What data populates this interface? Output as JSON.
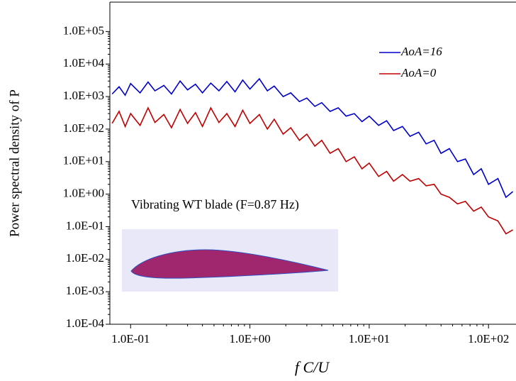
{
  "chart_data": {
    "type": "line",
    "x_label": "f C/U",
    "y_label": "Power spectral density of P",
    "annotation": "Vibrating WT blade (F=0.87 Hz)",
    "xscale": "log",
    "yscale": "log",
    "legend": "upper right",
    "xlim": [
      0.067,
      170
    ],
    "ylim": [
      0.0001,
      800000
    ],
    "xticks": [
      {
        "value": 0.1,
        "label": "1.0E-01"
      },
      {
        "value": 1,
        "label": "1.0E+00"
      },
      {
        "value": 10,
        "label": "1.0E+01"
      },
      {
        "value": 100,
        "label": "1.0E+02"
      }
    ],
    "yticks": [
      {
        "value": 0.0001,
        "label": "1.0E-04"
      },
      {
        "value": 0.001,
        "label": "1.0E-03"
      },
      {
        "value": 0.01,
        "label": "1.0E-02"
      },
      {
        "value": 0.1,
        "label": "1.0E-01"
      },
      {
        "value": 1,
        "label": "1.0E+00"
      },
      {
        "value": 10,
        "label": "1.0E+01"
      },
      {
        "value": 100,
        "label": "1.0E+02"
      },
      {
        "value": 1000,
        "label": "1.0E+03"
      },
      {
        "value": 10000,
        "label": "1.0E+04"
      },
      {
        "value": 100000,
        "label": "1.0E+05"
      }
    ],
    "x": [
      0.07,
      0.08,
      0.09,
      0.1,
      0.12,
      0.14,
      0.16,
      0.19,
      0.22,
      0.26,
      0.3,
      0.35,
      0.4,
      0.47,
      0.55,
      0.64,
      0.75,
      0.87,
      1,
      1.2,
      1.4,
      1.6,
      1.9,
      2.2,
      2.6,
      3,
      3.5,
      4,
      4.7,
      5.5,
      6.4,
      7.5,
      8.7,
      10,
      12,
      14,
      16,
      19,
      22,
      26,
      30,
      35,
      40,
      47,
      55,
      64,
      75,
      87,
      100,
      120,
      140,
      160
    ],
    "series": [
      {
        "name": "AoA=16",
        "color": "#0000cc",
        "values": [
          1200,
          2000,
          1100,
          2500,
          1300,
          2800,
          1500,
          2200,
          1200,
          3000,
          1600,
          2400,
          1300,
          2600,
          1500,
          2900,
          1400,
          3200,
          1700,
          3500,
          1500,
          2100,
          1000,
          1300,
          700,
          900,
          500,
          650,
          350,
          450,
          250,
          300,
          170,
          250,
          130,
          180,
          90,
          120,
          60,
          80,
          35,
          45,
          18,
          25,
          10,
          12,
          4,
          6,
          2,
          3,
          0.8,
          1.2
        ]
      },
      {
        "name": "AoA=0",
        "color": "#c00000",
        "values": [
          150,
          350,
          120,
          300,
          130,
          450,
          160,
          280,
          110,
          400,
          150,
          320,
          120,
          450,
          160,
          300,
          120,
          380,
          150,
          280,
          100,
          200,
          70,
          110,
          45,
          70,
          30,
          45,
          18,
          25,
          10,
          14,
          6,
          9,
          3.5,
          5,
          2.5,
          4,
          2.5,
          3,
          1.8,
          2,
          1,
          0.8,
          0.5,
          0.6,
          0.3,
          0.4,
          0.2,
          0.15,
          0.06,
          0.08
        ]
      }
    ]
  }
}
